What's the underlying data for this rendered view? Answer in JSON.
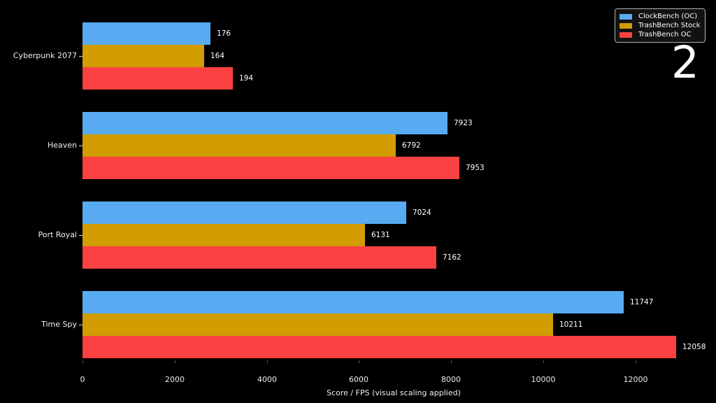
{
  "page_number": "2",
  "chart_data": {
    "type": "bar",
    "orientation": "horizontal",
    "title": "",
    "xlabel": "Score / FPS (visual scaling applied)",
    "ylabel": "",
    "categories": [
      "Cyberpunk 2077",
      "Heaven",
      "Port Royal",
      "Time Spy"
    ],
    "series": [
      {
        "name": "ClockBench (OC)",
        "color": "#58abf0",
        "values": [
          176,
          7923,
          7024,
          11747
        ],
        "display_units": [
          2777,
          7923,
          7024,
          11747
        ]
      },
      {
        "name": "TrashBench Stock",
        "color": "#d19d00",
        "values": [
          164,
          6792,
          6131,
          10211
        ],
        "display_units": [
          2640,
          6792,
          6131,
          10211
        ]
      },
      {
        "name": "TrashBench OC",
        "color": "#fb4141",
        "values": [
          194,
          7953,
          7162,
          12058
        ],
        "display_units": [
          3262,
          8179,
          7678,
          12883
        ]
      }
    ],
    "x_ticks": [
      0,
      2000,
      4000,
      6000,
      8000,
      10000,
      12000
    ],
    "xlim": [
      0,
      13748
    ],
    "grid": false,
    "legend_position": "upper right",
    "background_color": "#000000",
    "text_color": "#ffffff",
    "note": "visual scaling applied"
  }
}
